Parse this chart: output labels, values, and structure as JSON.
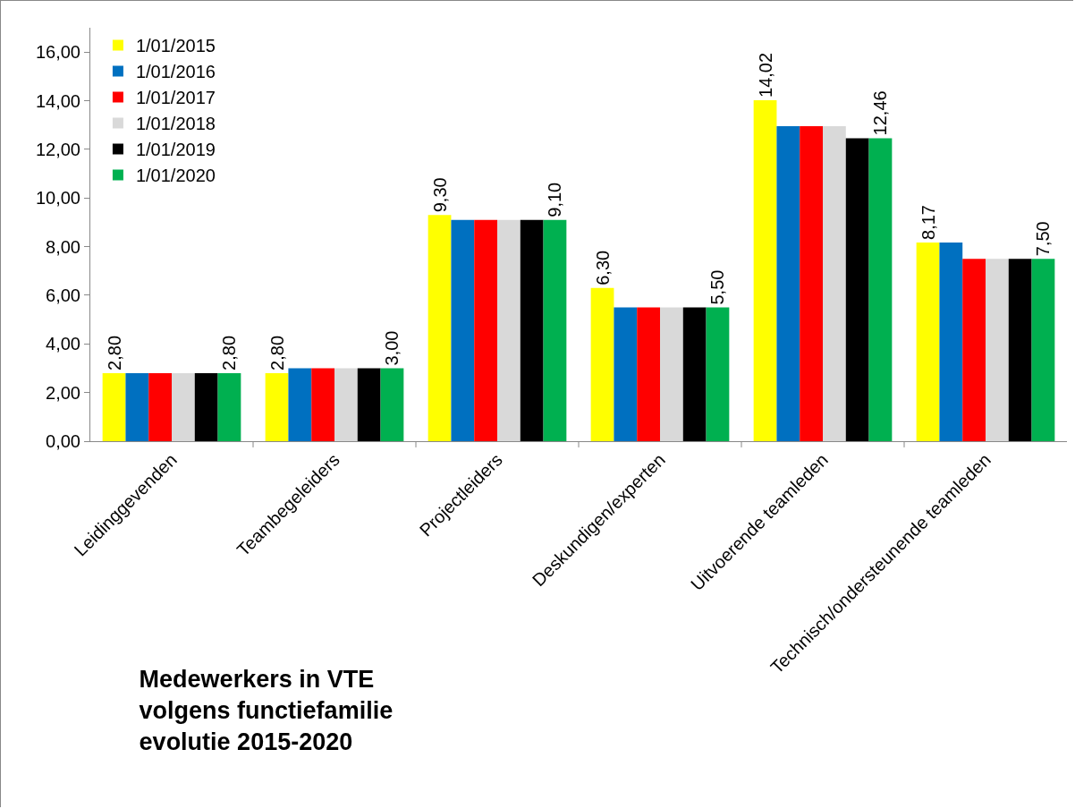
{
  "chart_data": {
    "type": "bar",
    "title": "Medewerkers in VTE\nvolgens functiefamilie\nevolutie 2015-2020",
    "categories": [
      "Leidinggevenden",
      "Teambegeleiders",
      "Projectleiders",
      "Deskundigen/experten",
      "Uitvoerende teamleden",
      "Technisch/ondersteunende teamleden"
    ],
    "series": [
      {
        "name": "1/01/2015",
        "color": "#ffff00",
        "values": [
          2.8,
          2.8,
          9.3,
          6.3,
          14.02,
          8.17
        ],
        "value_labels": [
          "2,80",
          "2,80",
          "9,30",
          "6,30",
          "14,02",
          "8,17"
        ]
      },
      {
        "name": "1/01/2016",
        "color": "#0070c0",
        "values": [
          2.8,
          3.0,
          9.1,
          5.5,
          12.95,
          8.17
        ]
      },
      {
        "name": "1/01/2017",
        "color": "#ff0000",
        "values": [
          2.8,
          3.0,
          9.1,
          5.5,
          12.95,
          7.5
        ]
      },
      {
        "name": "1/01/2018",
        "color": "#d9d9d9",
        "values": [
          2.8,
          3.0,
          9.1,
          5.5,
          12.95,
          7.5
        ]
      },
      {
        "name": "1/01/2019",
        "color": "#000000",
        "values": [
          2.8,
          3.0,
          9.1,
          5.5,
          12.46,
          7.5
        ]
      },
      {
        "name": "1/01/2020",
        "color": "#00b050",
        "values": [
          2.8,
          3.0,
          9.1,
          5.5,
          12.46,
          7.5
        ],
        "value_labels": [
          "2,80",
          "3,00",
          "9,10",
          "5,50",
          "12,46",
          "7,50"
        ]
      }
    ],
    "ylim": [
      0,
      17
    ],
    "yticks": [
      {
        "value": 0,
        "label": "0,00"
      },
      {
        "value": 2,
        "label": "2,00"
      },
      {
        "value": 4,
        "label": "4,00"
      },
      {
        "value": 6,
        "label": "6,00"
      },
      {
        "value": 8,
        "label": "8,00"
      },
      {
        "value": 10,
        "label": "10,00"
      },
      {
        "value": 12,
        "label": "12,00"
      },
      {
        "value": 14,
        "label": "14,00"
      },
      {
        "value": 16,
        "label": "16,00"
      }
    ],
    "grid": false,
    "legend": "top left"
  }
}
